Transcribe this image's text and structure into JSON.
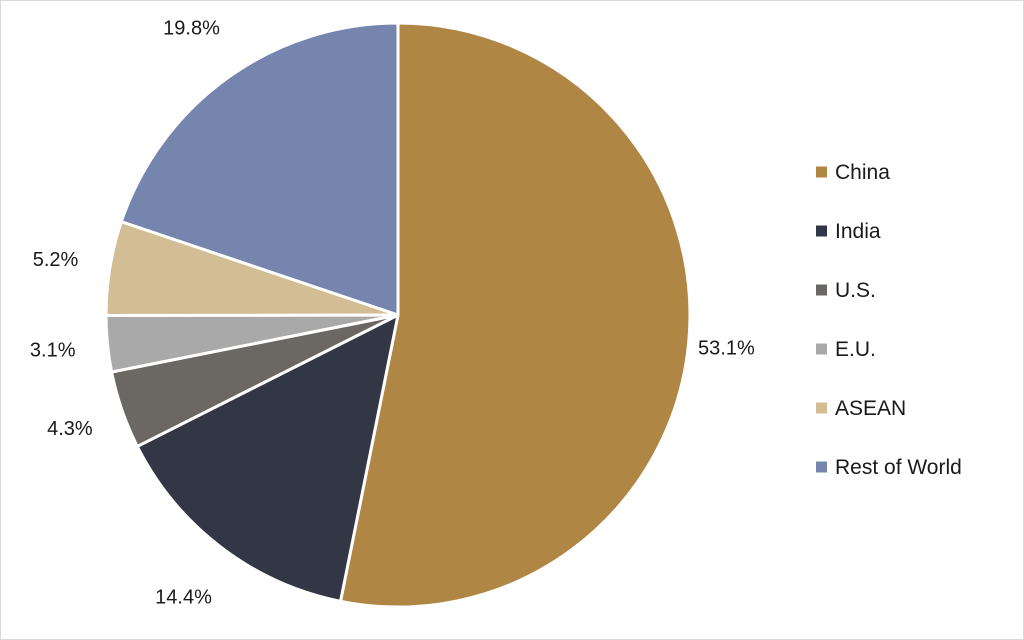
{
  "chart_data": {
    "type": "pie",
    "title": "",
    "categories": [
      "China",
      "India",
      "U.S.",
      "E.U.",
      "ASEAN",
      "Rest of World"
    ],
    "values": [
      53.1,
      14.4,
      4.3,
      3.1,
      5.2,
      19.8
    ],
    "value_labels": [
      "53.1%",
      "14.4%",
      "4.3%",
      "3.1%",
      "5.2%",
      "19.8%"
    ],
    "colors": [
      "#b08645",
      "#333644",
      "#6b6864",
      "#a9a9a9",
      "#d2bd95",
      "#7685ad"
    ],
    "start_angle": "12 o'clock",
    "direction": "clockwise",
    "legend_position": "right"
  }
}
